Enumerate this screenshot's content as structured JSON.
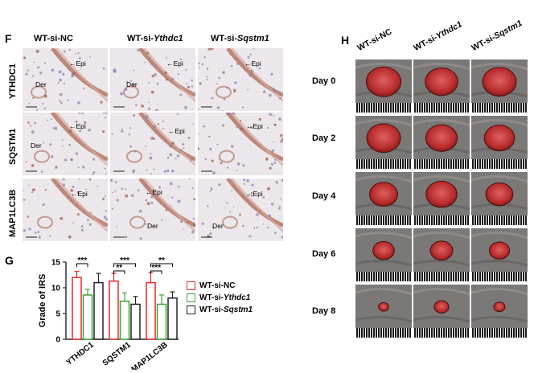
{
  "panel_f": {
    "letter": "F",
    "columns": [
      "WT-si-NC",
      "WT-si-",
      "WT-si-"
    ],
    "column_gene": [
      "",
      "Ythdc1",
      "Sqstm1"
    ],
    "rows": [
      "YTHDC1",
      "SQSTM1",
      "MAP1LC3B"
    ],
    "epi_label": "Epi",
    "der_label": "Der"
  },
  "panel_g": {
    "letter": "G",
    "legend": [
      {
        "prefix": "WT-si-NC",
        "gene": "",
        "color": "#e8282b"
      },
      {
        "prefix": "WT-si-",
        "gene": "Ythdc1",
        "color": "#3aa53a"
      },
      {
        "prefix": "WT-si-",
        "gene": "Sqstm1",
        "color": "#222222"
      }
    ]
  },
  "panel_h": {
    "letter": "H",
    "columns": [
      "WT-si-NC",
      "WT-si-",
      "WT-si-"
    ],
    "column_gene": [
      "",
      "Ythdc1",
      "Sqstm1"
    ],
    "days": [
      "Day 0",
      "Day 2",
      "Day 4",
      "Day 6",
      "Day 8"
    ],
    "wound_size": [
      [
        0.62,
        0.58,
        0.6
      ],
      [
        0.6,
        0.56,
        0.54
      ],
      [
        0.5,
        0.55,
        0.48
      ],
      [
        0.38,
        0.4,
        0.36
      ],
      [
        0.18,
        0.26,
        0.2
      ]
    ]
  },
  "chart_data": {
    "type": "bar",
    "ylabel": "Grade of IRS",
    "xlabel": "",
    "ylim": [
      0,
      15
    ],
    "yticks": [
      0,
      5,
      10,
      15
    ],
    "categories": [
      "YTHDC1",
      "SQSTM1",
      "MAP1LC3B"
    ],
    "series": [
      {
        "name": "WT-si-NC",
        "color": "#e8282b",
        "values": [
          12.0,
          11.3,
          11.0
        ],
        "errors": [
          1.2,
          1.5,
          2.0
        ]
      },
      {
        "name": "WT-si-Ythdc1",
        "color": "#3aa53a",
        "values": [
          8.6,
          7.4,
          6.8
        ],
        "errors": [
          1.1,
          1.6,
          1.8
        ]
      },
      {
        "name": "WT-si-Sqstm1",
        "color": "#222222",
        "values": [
          11.0,
          6.8,
          8.0
        ],
        "errors": [
          1.8,
          1.5,
          1.2
        ]
      }
    ],
    "significance": [
      {
        "category": "YTHDC1",
        "pairs": [
          {
            "from": 0,
            "to": 1,
            "label": "***"
          }
        ]
      },
      {
        "category": "SQSTM1",
        "pairs": [
          {
            "from": 0,
            "to": 1,
            "label": "**"
          },
          {
            "from": 0,
            "to": 2,
            "label": "***"
          }
        ]
      },
      {
        "category": "MAP1LC3B",
        "pairs": [
          {
            "from": 0,
            "to": 1,
            "label": "***"
          },
          {
            "from": 0,
            "to": 2,
            "label": "**"
          }
        ]
      }
    ]
  }
}
